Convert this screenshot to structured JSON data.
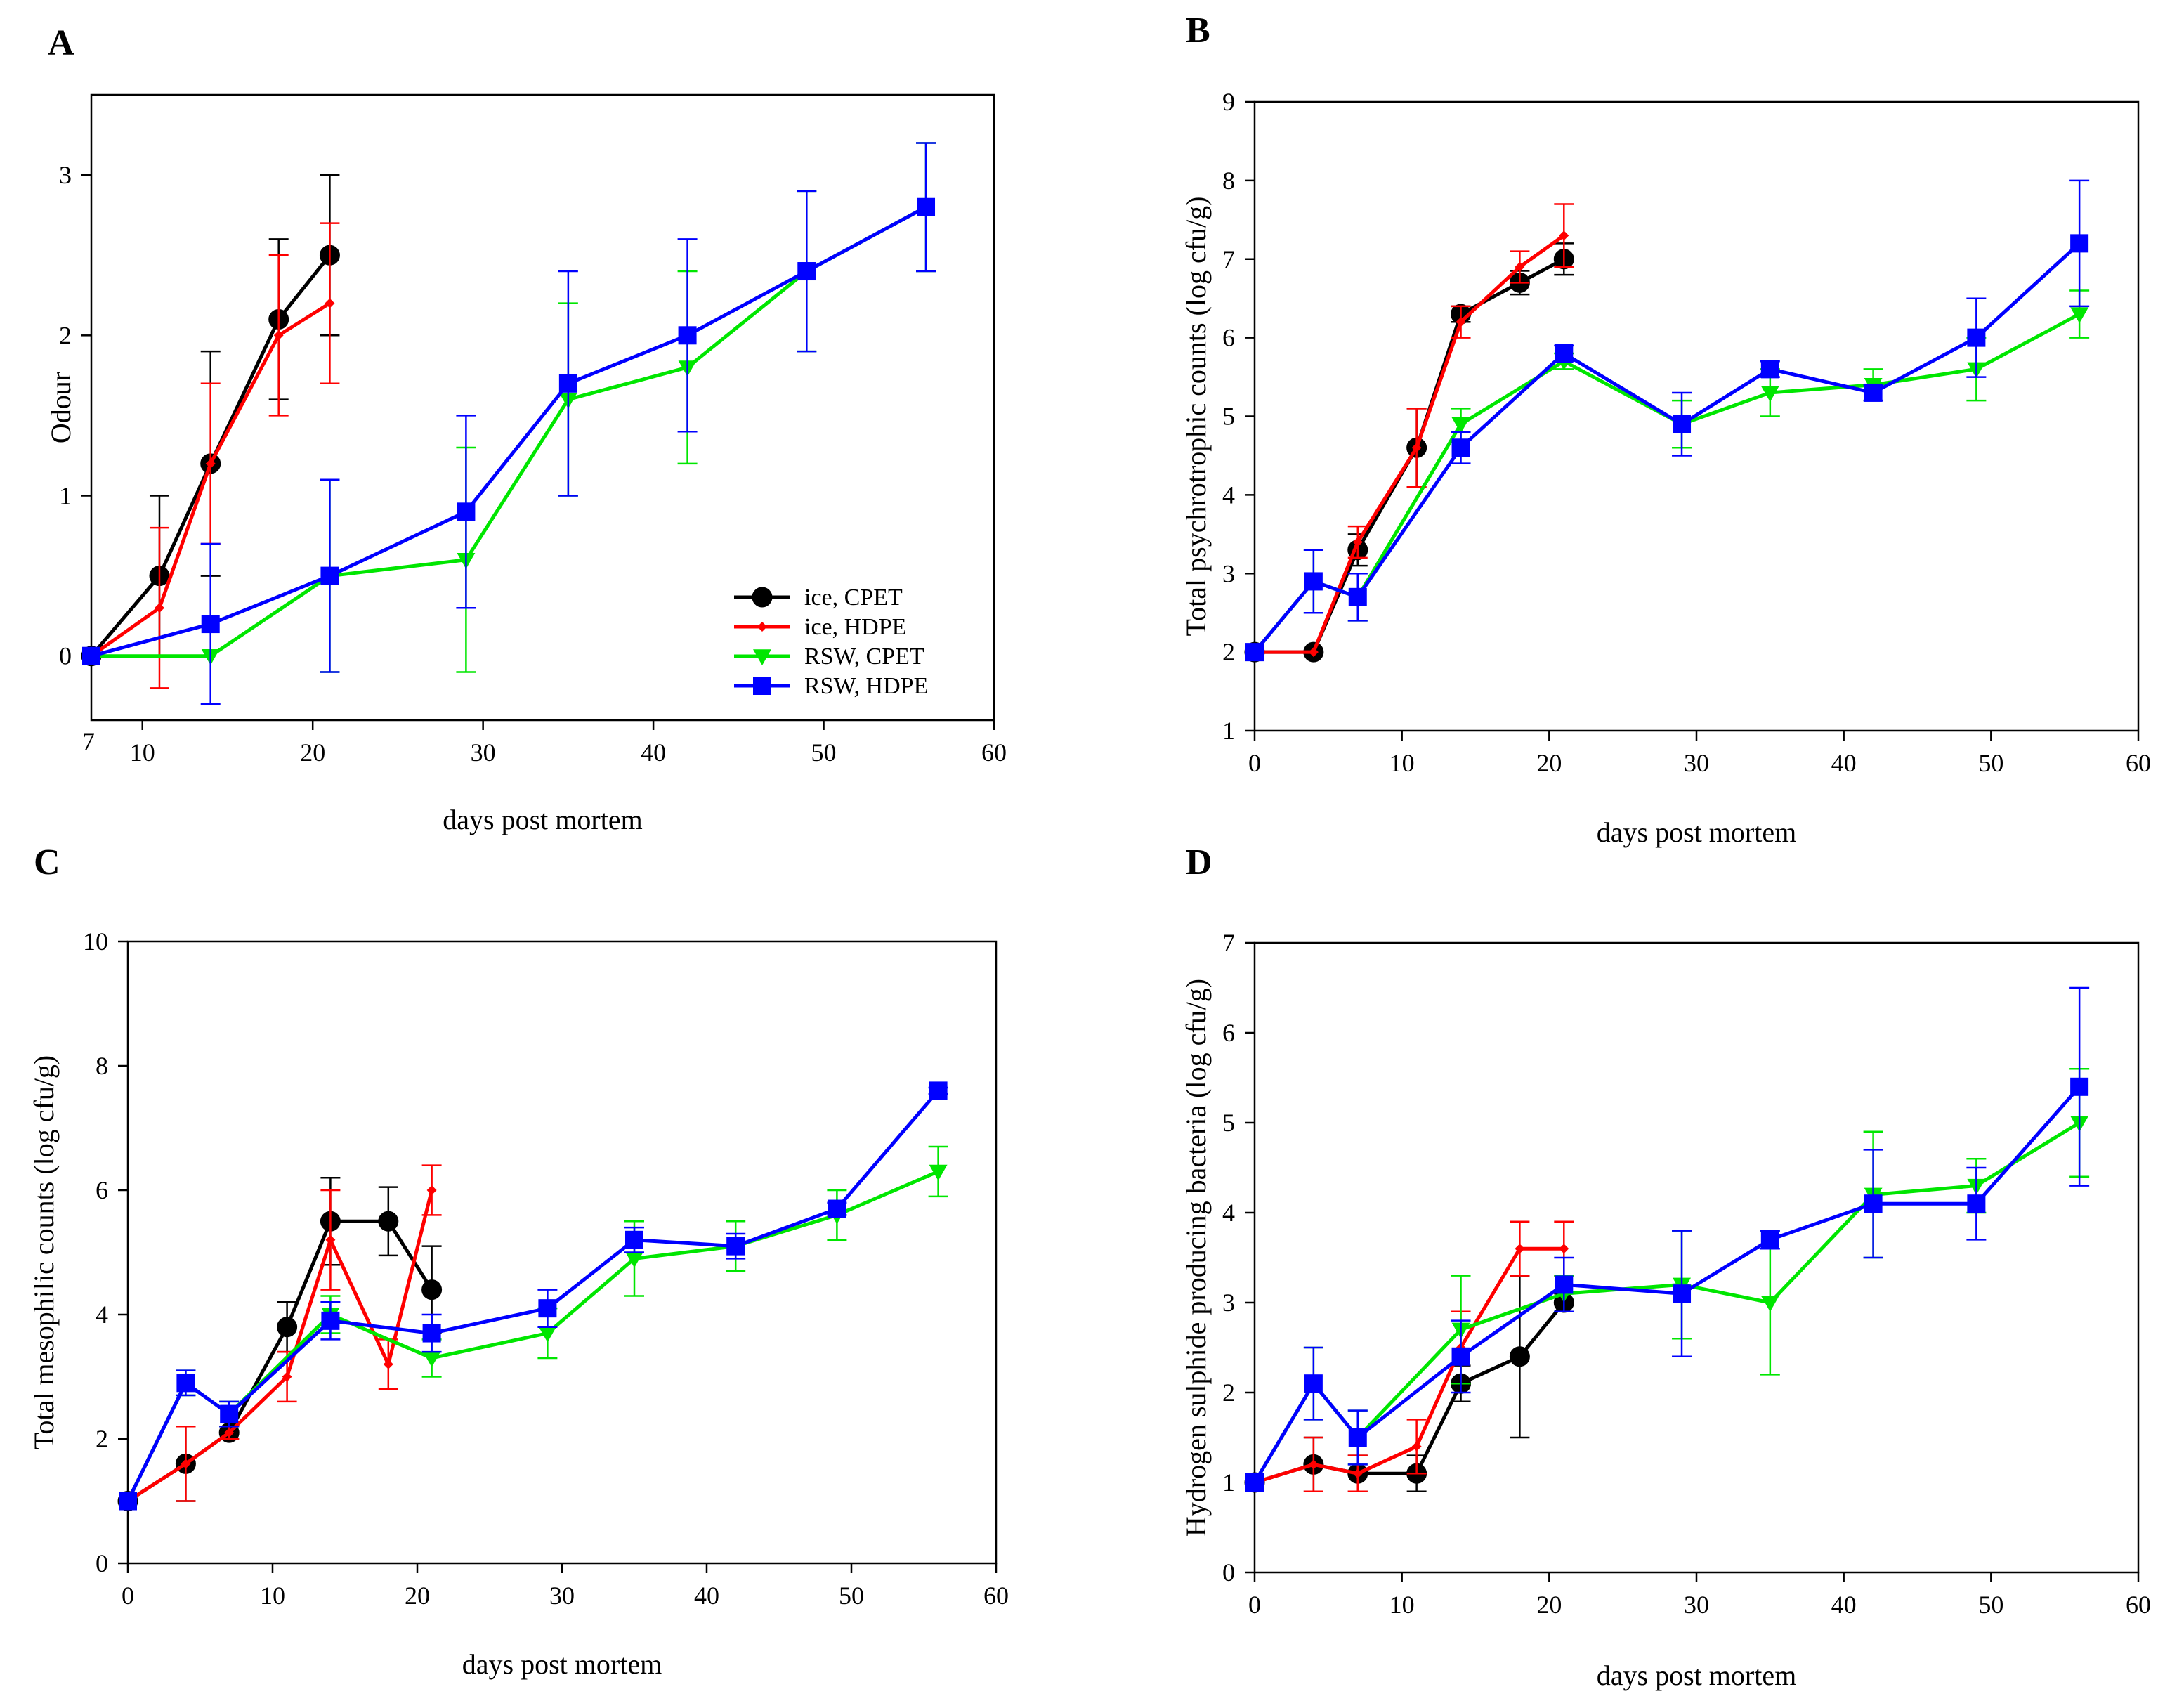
{
  "figure": {
    "panels": [
      "A",
      "B",
      "C",
      "D"
    ]
  },
  "colors": {
    "ice_cpet": "#000000",
    "ice_hdpe": "#ff0000",
    "rsw_cpet": "#00e600",
    "rsw_hdpe": "#0000ff"
  },
  "chart_data": [
    {
      "panel": "A",
      "type": "line",
      "title": "",
      "xlabel": "days post mortem",
      "ylabel": "Odour",
      "xlim": [
        7,
        60
      ],
      "ylim": [
        -0.4,
        3.5
      ],
      "xticks": [
        10,
        20,
        30,
        40,
        50,
        60
      ],
      "xtick_extra": [
        {
          "value": 7,
          "label": "7"
        }
      ],
      "yticks": [
        0,
        1,
        2,
        3
      ],
      "legend": {
        "position": "bottom-right",
        "entries": [
          "ice, CPET",
          "ice, HDPE",
          "RSW, CPET",
          "RSW, HDPE"
        ]
      },
      "series": [
        {
          "name": "ice, CPET",
          "color": "#000000",
          "marker": "circle",
          "x": [
            7,
            11,
            14,
            18,
            21
          ],
          "y": [
            0,
            0.5,
            1.2,
            2.1,
            2.5
          ],
          "err": [
            0,
            0.5,
            0.7,
            0.5,
            0.5
          ]
        },
        {
          "name": "ice, HDPE",
          "color": "#ff0000",
          "marker": "diamond",
          "x": [
            7,
            11,
            14,
            18,
            21
          ],
          "y": [
            0,
            0.3,
            1.2,
            2.0,
            2.2
          ],
          "err": [
            0,
            0.5,
            0.5,
            0.5,
            0.5
          ]
        },
        {
          "name": "RSW, CPET",
          "color": "#00e600",
          "marker": "triangle",
          "x": [
            7,
            14,
            21,
            29,
            35,
            42,
            49,
            56
          ],
          "y": [
            0,
            0,
            0.5,
            0.6,
            1.6,
            1.8,
            2.4,
            2.8
          ],
          "err": [
            0,
            0,
            0.6,
            0.7,
            0.6,
            0.6,
            0.5,
            0.4
          ]
        },
        {
          "name": "RSW, HDPE",
          "color": "#0000ff",
          "marker": "square",
          "x": [
            7,
            14,
            21,
            29,
            35,
            42,
            49,
            56
          ],
          "y": [
            0,
            0.2,
            0.5,
            0.9,
            1.7,
            2.0,
            2.4,
            2.8
          ],
          "err": [
            0,
            0.5,
            0.6,
            0.6,
            0.7,
            0.6,
            0.5,
            0.4
          ]
        }
      ]
    },
    {
      "panel": "B",
      "type": "line",
      "title": "",
      "xlabel": "days post mortem",
      "ylabel": "Total psychrotrophic counts (log cfu/g)",
      "xlim": [
        0,
        60
      ],
      "ylim": [
        1,
        9
      ],
      "xticks": [
        0,
        10,
        20,
        30,
        40,
        50,
        60
      ],
      "yticks": [
        1,
        2,
        3,
        4,
        5,
        6,
        7,
        8,
        9
      ],
      "series": [
        {
          "name": "ice, CPET",
          "color": "#000000",
          "marker": "circle",
          "x": [
            0,
            4,
            7,
            11,
            14,
            18,
            21
          ],
          "y": [
            2.0,
            2.0,
            3.3,
            4.6,
            6.3,
            6.7,
            7.0
          ],
          "err": [
            0,
            0,
            0.2,
            0.5,
            0.1,
            0.15,
            0.2
          ]
        },
        {
          "name": "ice, HDPE",
          "color": "#ff0000",
          "marker": "diamond",
          "x": [
            0,
            4,
            7,
            11,
            14,
            18,
            21
          ],
          "y": [
            2.0,
            2.0,
            3.4,
            4.6,
            6.2,
            6.9,
            7.3
          ],
          "err": [
            0,
            0,
            0.2,
            0.5,
            0.2,
            0.2,
            0.4
          ]
        },
        {
          "name": "RSW, CPET",
          "color": "#00e600",
          "marker": "triangle",
          "x": [
            0,
            4,
            7,
            14,
            21,
            29,
            35,
            42,
            49,
            56
          ],
          "y": [
            2.0,
            2.9,
            2.7,
            4.9,
            5.7,
            4.9,
            5.3,
            5.4,
            5.6,
            6.3
          ],
          "err": [
            0,
            0.4,
            0.3,
            0.2,
            0.1,
            0.3,
            0.3,
            0.2,
            0.4,
            0.3
          ]
        },
        {
          "name": "RSW, HDPE",
          "color": "#0000ff",
          "marker": "square",
          "x": [
            0,
            4,
            7,
            14,
            21,
            29,
            35,
            42,
            49,
            56
          ],
          "y": [
            2.0,
            2.9,
            2.7,
            4.6,
            5.8,
            4.9,
            5.6,
            5.3,
            6.0,
            7.2
          ],
          "err": [
            0,
            0.4,
            0.3,
            0.2,
            0.1,
            0.4,
            0.1,
            0.1,
            0.5,
            0.8
          ]
        }
      ]
    },
    {
      "panel": "C",
      "type": "line",
      "title": "",
      "xlabel": "days post mortem",
      "ylabel": "Total mesophilic counts (log cfu/g)",
      "xlim": [
        0,
        60
      ],
      "ylim": [
        0,
        10
      ],
      "xticks": [
        0,
        10,
        20,
        30,
        40,
        50,
        60
      ],
      "yticks": [
        0,
        2,
        4,
        6,
        8,
        10
      ],
      "series": [
        {
          "name": "ice, CPET",
          "color": "#000000",
          "marker": "circle",
          "x": [
            0,
            4,
            7,
            11,
            14,
            18,
            21
          ],
          "y": [
            1.0,
            1.6,
            2.1,
            3.8,
            5.5,
            5.5,
            4.4
          ],
          "err": [
            0,
            0.6,
            0.1,
            0.4,
            0.7,
            0.55,
            0.7
          ]
        },
        {
          "name": "ice, HDPE",
          "color": "#ff0000",
          "marker": "diamond",
          "x": [
            0,
            4,
            7,
            11,
            14,
            18,
            21
          ],
          "y": [
            1.0,
            1.6,
            2.1,
            3.0,
            5.2,
            3.2,
            6.0
          ],
          "err": [
            0,
            0.6,
            0.1,
            0.4,
            0.8,
            0.4,
            0.4
          ]
        },
        {
          "name": "RSW, CPET",
          "color": "#00e600",
          "marker": "triangle",
          "x": [
            0,
            4,
            7,
            14,
            21,
            29,
            35,
            42,
            49,
            56
          ],
          "y": [
            1.0,
            2.9,
            2.4,
            4.0,
            3.3,
            3.7,
            4.9,
            5.1,
            5.6,
            6.3
          ],
          "err": [
            0,
            0.2,
            0.2,
            0.3,
            0.3,
            0.4,
            0.6,
            0.4,
            0.4,
            0.4
          ]
        },
        {
          "name": "RSW, HDPE",
          "color": "#0000ff",
          "marker": "square",
          "x": [
            0,
            4,
            7,
            14,
            21,
            29,
            35,
            42,
            49,
            56
          ],
          "y": [
            1.0,
            2.9,
            2.4,
            3.9,
            3.7,
            4.1,
            5.2,
            5.1,
            5.7,
            7.6
          ],
          "err": [
            0,
            0.2,
            0.2,
            0.3,
            0.3,
            0.3,
            0.2,
            0.2,
            0.1,
            0.05
          ]
        }
      ]
    },
    {
      "panel": "D",
      "type": "line",
      "title": "",
      "xlabel": "days post mortem",
      "ylabel": "Hydrogen sulphide producing bacteria (log cfu/g)",
      "xlim": [
        0,
        60
      ],
      "ylim": [
        0,
        7
      ],
      "xticks": [
        0,
        10,
        20,
        30,
        40,
        50,
        60
      ],
      "yticks": [
        0,
        1,
        2,
        3,
        4,
        5,
        6,
        7
      ],
      "series": [
        {
          "name": "ice, CPET",
          "color": "#000000",
          "marker": "circle",
          "x": [
            0,
            4,
            7,
            11,
            14,
            18,
            21
          ],
          "y": [
            1.0,
            1.2,
            1.1,
            1.1,
            2.1,
            2.4,
            3.0
          ],
          "err": [
            0,
            0.3,
            0.2,
            0.2,
            0.2,
            0.9,
            0.1
          ]
        },
        {
          "name": "ice, HDPE",
          "color": "#ff0000",
          "marker": "diamond",
          "x": [
            0,
            4,
            7,
            11,
            14,
            18,
            21
          ],
          "y": [
            1.0,
            1.2,
            1.1,
            1.4,
            2.5,
            3.6,
            3.6
          ],
          "err": [
            0,
            0.3,
            0.2,
            0.3,
            0.4,
            0.3,
            0.3
          ]
        },
        {
          "name": "RSW, CPET",
          "color": "#00e600",
          "marker": "triangle",
          "x": [
            0,
            4,
            7,
            14,
            21,
            29,
            35,
            42,
            49,
            56
          ],
          "y": [
            1.0,
            2.1,
            1.5,
            2.7,
            3.1,
            3.2,
            3.0,
            4.2,
            4.3,
            5.0
          ],
          "err": [
            0,
            0.4,
            0.3,
            0.6,
            0.2,
            0.6,
            0.8,
            0.7,
            0.3,
            0.6
          ]
        },
        {
          "name": "RSW, HDPE",
          "color": "#0000ff",
          "marker": "square",
          "x": [
            0,
            4,
            7,
            14,
            21,
            29,
            35,
            42,
            49,
            56
          ],
          "y": [
            1.0,
            2.1,
            1.5,
            2.4,
            3.2,
            3.1,
            3.7,
            4.1,
            4.1,
            5.4
          ],
          "err": [
            0,
            0.4,
            0.3,
            0.4,
            0.3,
            0.7,
            0.1,
            0.6,
            0.4,
            1.1
          ]
        }
      ]
    }
  ]
}
